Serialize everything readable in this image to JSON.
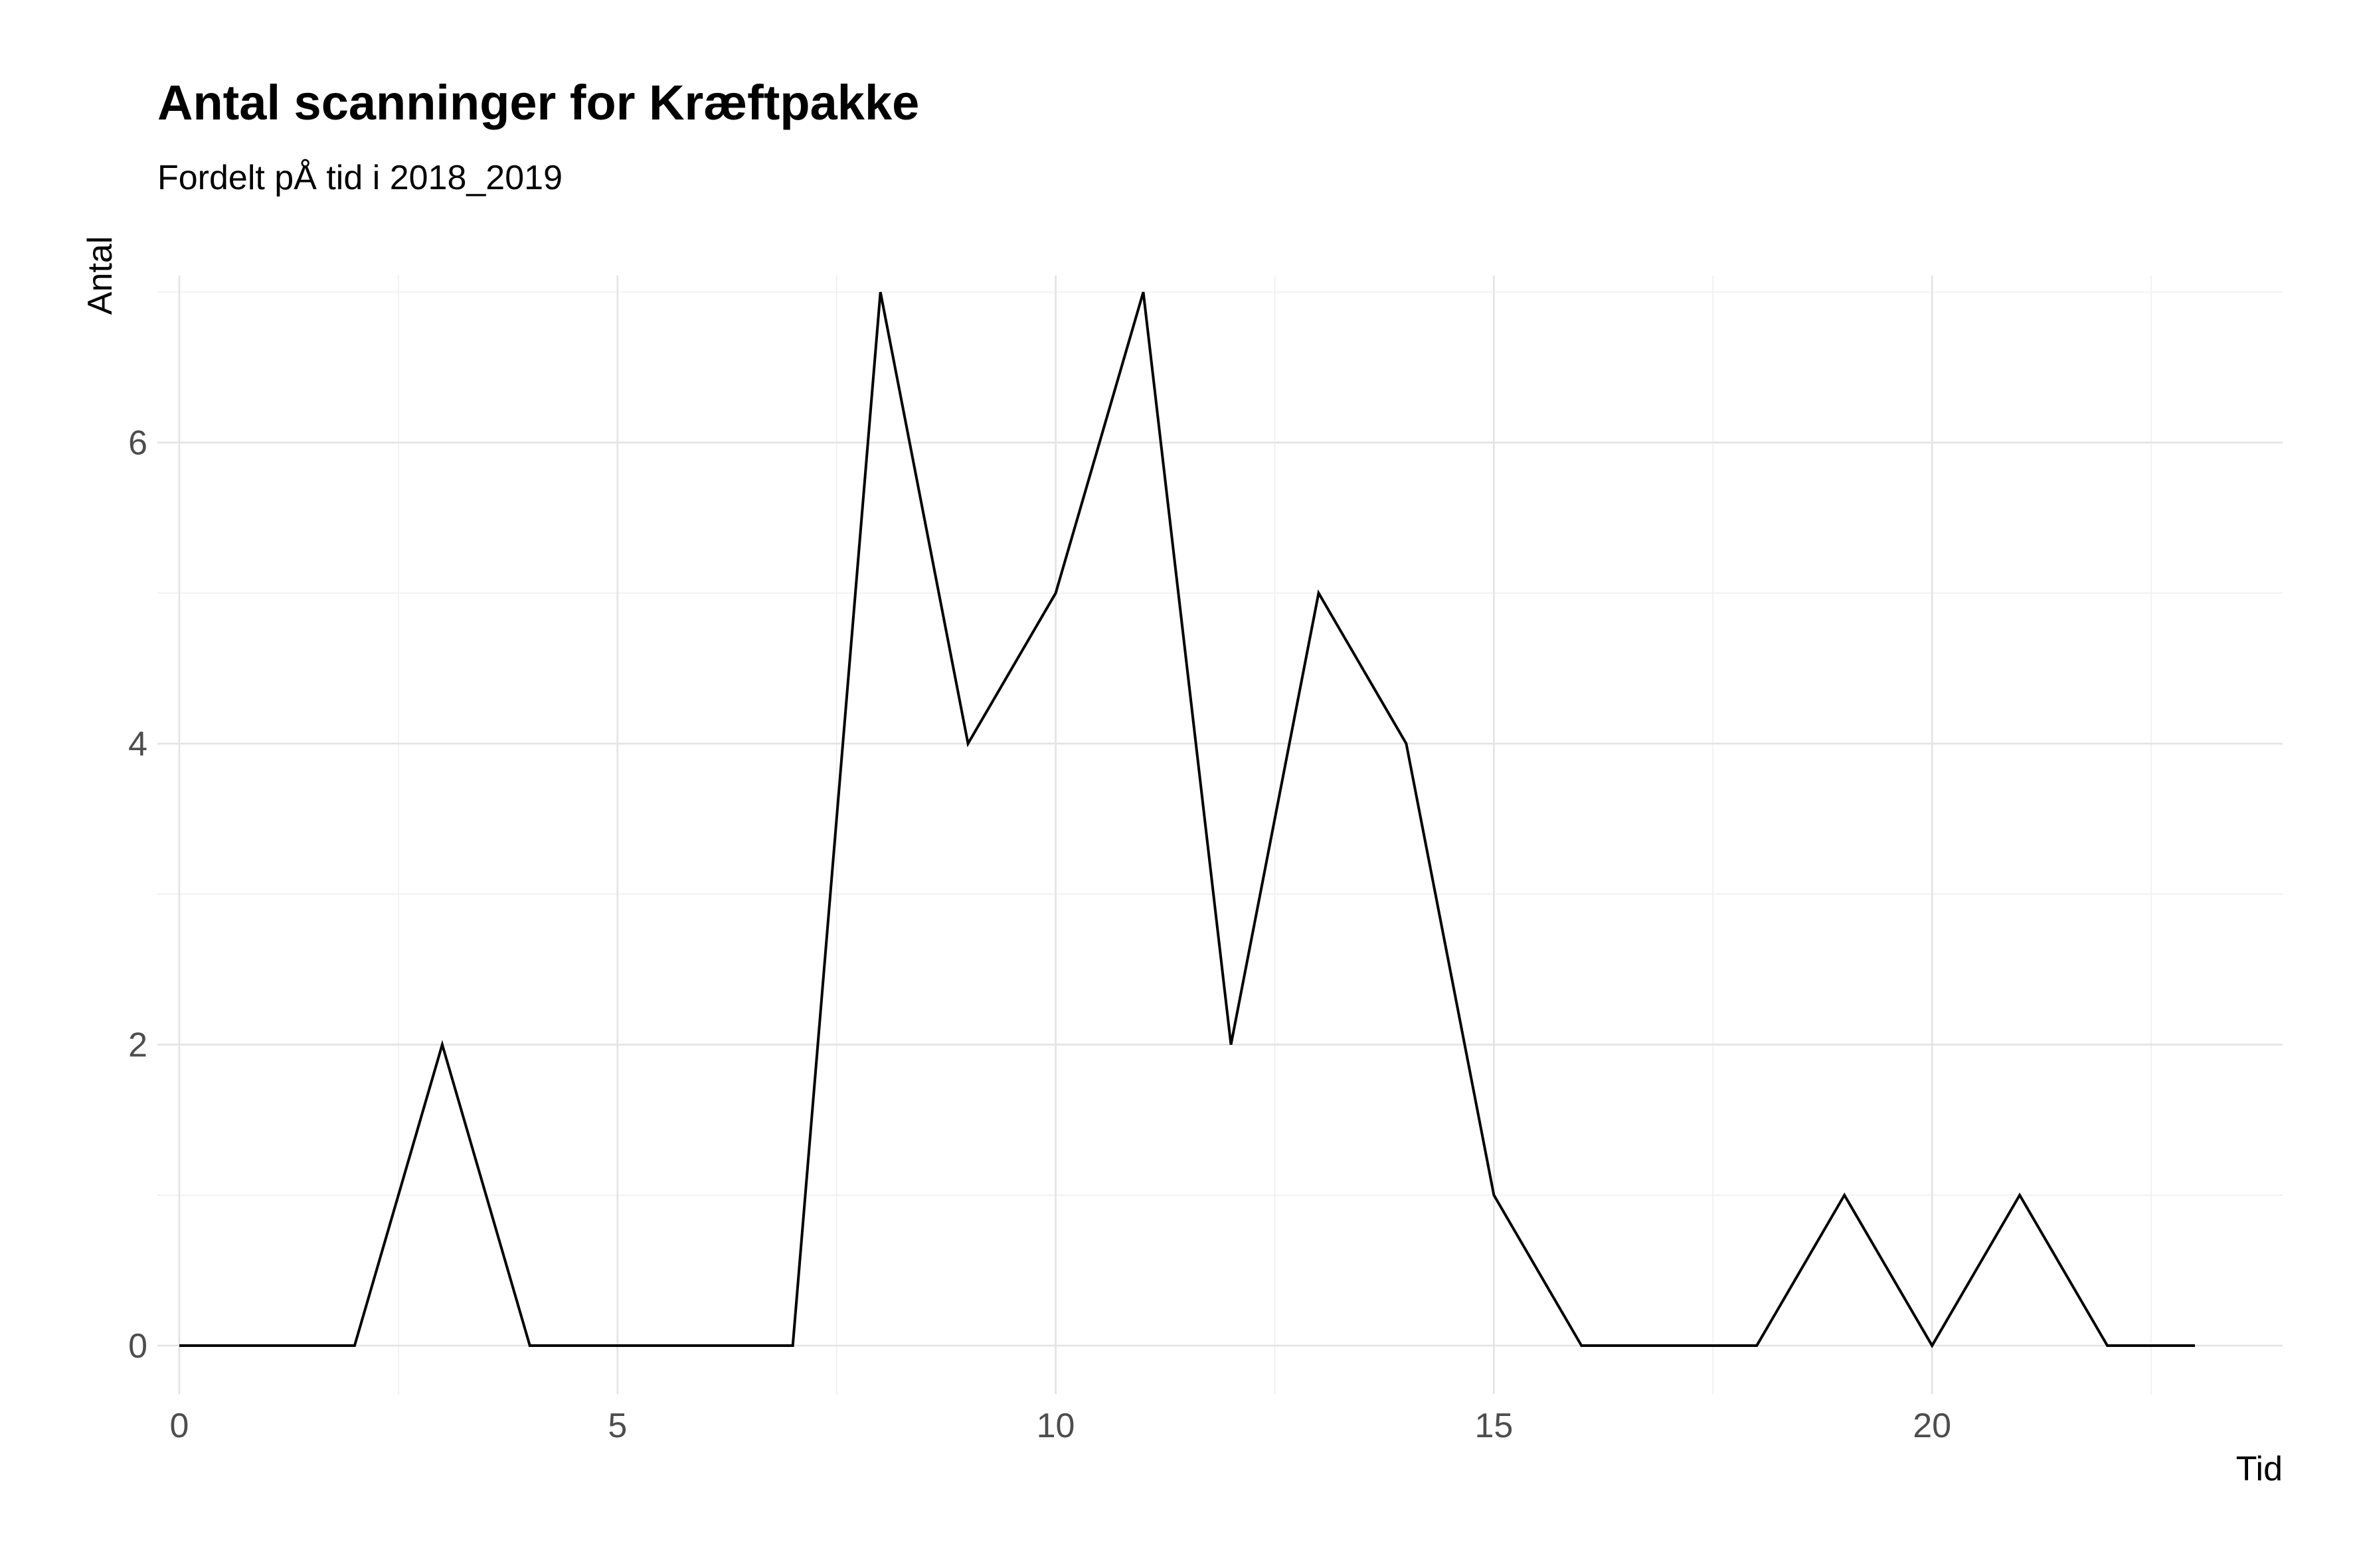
{
  "chart_data": {
    "type": "line",
    "title": "Antal scanninger for Kræftpakke",
    "subtitle": "Fordelt pÅ tid i 2018_2019",
    "xlabel": "Tid",
    "ylabel": "Antal",
    "xlim": [
      -0.25,
      24.0
    ],
    "ylim": [
      -0.35,
      7.0
    ],
    "x_ticks": [
      0,
      5,
      10,
      15,
      20
    ],
    "y_ticks": [
      0,
      2,
      4,
      6
    ],
    "grid": true,
    "legend": "none",
    "line_color": "#000000",
    "x": [
      0,
      1,
      2,
      3,
      4,
      5,
      6,
      7,
      8,
      9,
      10,
      11,
      12,
      13,
      14,
      15,
      16,
      17,
      18,
      19,
      20,
      21,
      22,
      23
    ],
    "values": [
      0,
      0,
      0,
      2,
      0,
      0,
      0,
      0,
      7,
      4,
      5,
      7,
      2,
      5,
      4,
      1,
      0,
      0,
      0,
      1,
      0,
      1,
      0,
      0
    ]
  }
}
